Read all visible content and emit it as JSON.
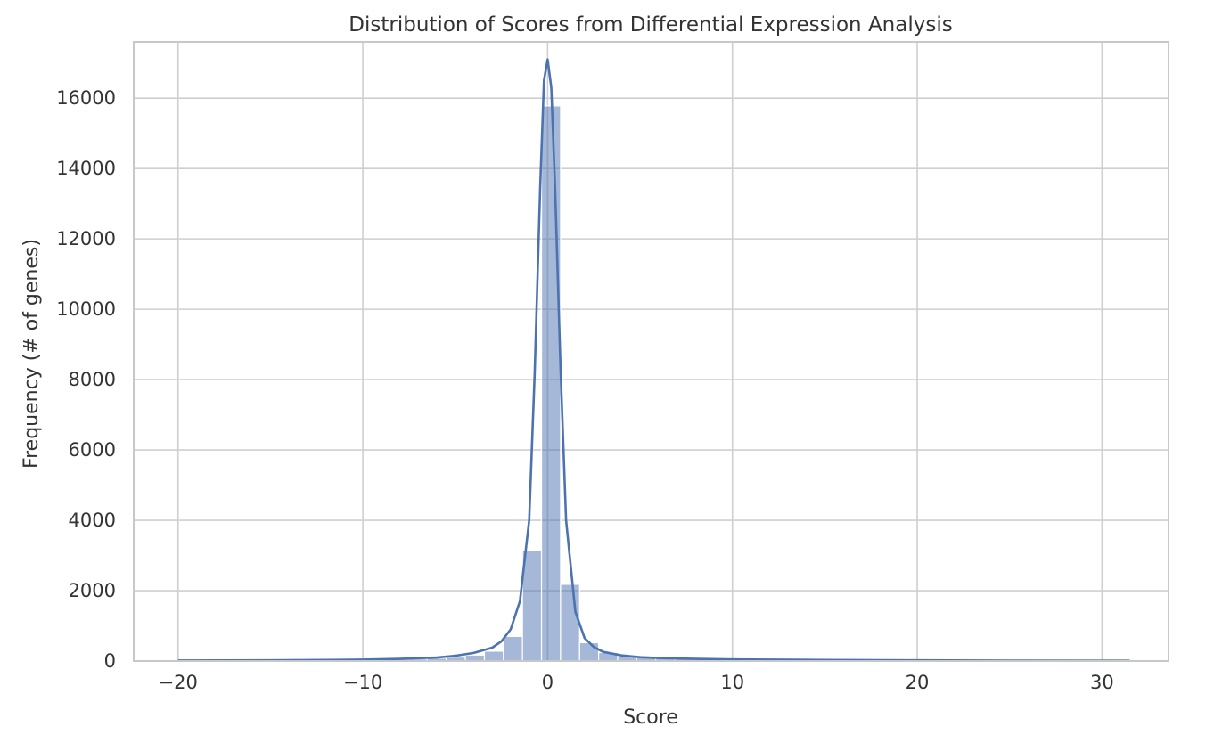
{
  "chart_data": {
    "type": "bar",
    "subtype": "histogram-with-kde",
    "title": "Distribution of Scores from Differential Expression Analysis",
    "xlabel": "Score",
    "ylabel": "Frequency (# of genes)",
    "xlim": [
      -22.4,
      33.6
    ],
    "ylim": [
      0,
      17600
    ],
    "x_ticks": [
      -20,
      -10,
      0,
      10,
      20,
      30
    ],
    "x_tick_labels": [
      "−20",
      "−10",
      "0",
      "10",
      "20",
      "30"
    ],
    "y_ticks": [
      0,
      2000,
      4000,
      6000,
      8000,
      10000,
      12000,
      14000,
      16000
    ],
    "y_tick_labels": [
      "0",
      "2000",
      "4000",
      "6000",
      "8000",
      "10000",
      "12000",
      "14000",
      "16000"
    ],
    "grid": true,
    "bar_color": "#4c72b0",
    "bar_opacity": 0.5,
    "line_color": "#4c72b0",
    "bin_width": 1.03,
    "bins": [
      {
        "x0": -19.9,
        "count": 10
      },
      {
        "x0": -18.87,
        "count": 8
      },
      {
        "x0": -17.84,
        "count": 8
      },
      {
        "x0": -16.81,
        "count": 10
      },
      {
        "x0": -15.78,
        "count": 10
      },
      {
        "x0": -14.75,
        "count": 12
      },
      {
        "x0": -13.72,
        "count": 15
      },
      {
        "x0": -12.69,
        "count": 18
      },
      {
        "x0": -11.66,
        "count": 25
      },
      {
        "x0": -10.63,
        "count": 30
      },
      {
        "x0": -9.6,
        "count": 40
      },
      {
        "x0": -8.57,
        "count": 50
      },
      {
        "x0": -7.54,
        "count": 60
      },
      {
        "x0": -6.51,
        "count": 80
      },
      {
        "x0": -5.48,
        "count": 110
      },
      {
        "x0": -4.45,
        "count": 170
      },
      {
        "x0": -3.42,
        "count": 280
      },
      {
        "x0": -2.39,
        "count": 700
      },
      {
        "x0": -1.36,
        "count": 3150
      },
      {
        "x0": -0.33,
        "count": 15780
      },
      {
        "x0": 0.7,
        "count": 2180
      },
      {
        "x0": 1.73,
        "count": 520
      },
      {
        "x0": 2.76,
        "count": 240
      },
      {
        "x0": 3.79,
        "count": 140
      },
      {
        "x0": 4.82,
        "count": 100
      },
      {
        "x0": 5.85,
        "count": 80
      },
      {
        "x0": 6.88,
        "count": 60
      },
      {
        "x0": 7.91,
        "count": 50
      },
      {
        "x0": 8.94,
        "count": 45
      },
      {
        "x0": 9.97,
        "count": 40
      },
      {
        "x0": 11.0,
        "count": 35
      },
      {
        "x0": 12.03,
        "count": 30
      },
      {
        "x0": 13.06,
        "count": 30
      },
      {
        "x0": 14.09,
        "count": 30
      },
      {
        "x0": 15.12,
        "count": 25
      },
      {
        "x0": 16.15,
        "count": 22
      },
      {
        "x0": 17.18,
        "count": 20
      },
      {
        "x0": 18.21,
        "count": 18
      },
      {
        "x0": 19.24,
        "count": 15
      },
      {
        "x0": 20.27,
        "count": 12
      },
      {
        "x0": 21.3,
        "count": 10
      },
      {
        "x0": 22.33,
        "count": 10
      },
      {
        "x0": 23.36,
        "count": 8
      },
      {
        "x0": 24.39,
        "count": 8
      },
      {
        "x0": 25.42,
        "count": 6
      },
      {
        "x0": 26.45,
        "count": 6
      },
      {
        "x0": 27.48,
        "count": 5
      },
      {
        "x0": 28.51,
        "count": 5
      },
      {
        "x0": 29.54,
        "count": 4
      },
      {
        "x0": 30.57,
        "count": 4
      }
    ],
    "kde": {
      "x": [
        -20,
        -15,
        -12,
        -10,
        -8,
        -6,
        -5,
        -4,
        -3,
        -2.5,
        -2,
        -1.5,
        -1.0,
        -0.7,
        -0.4,
        -0.2,
        0,
        0.2,
        0.4,
        0.7,
        1.0,
        1.5,
        2,
        2.5,
        3,
        4,
        5,
        6,
        8,
        10,
        12,
        15,
        20,
        25,
        31.5
      ],
      "y": [
        15,
        20,
        30,
        40,
        60,
        100,
        150,
        230,
        380,
        560,
        900,
        1700,
        4000,
        8200,
        13500,
        16500,
        17100,
        16300,
        13500,
        8300,
        4000,
        1400,
        650,
        400,
        260,
        160,
        110,
        85,
        60,
        45,
        40,
        30,
        20,
        12,
        8
      ]
    }
  }
}
